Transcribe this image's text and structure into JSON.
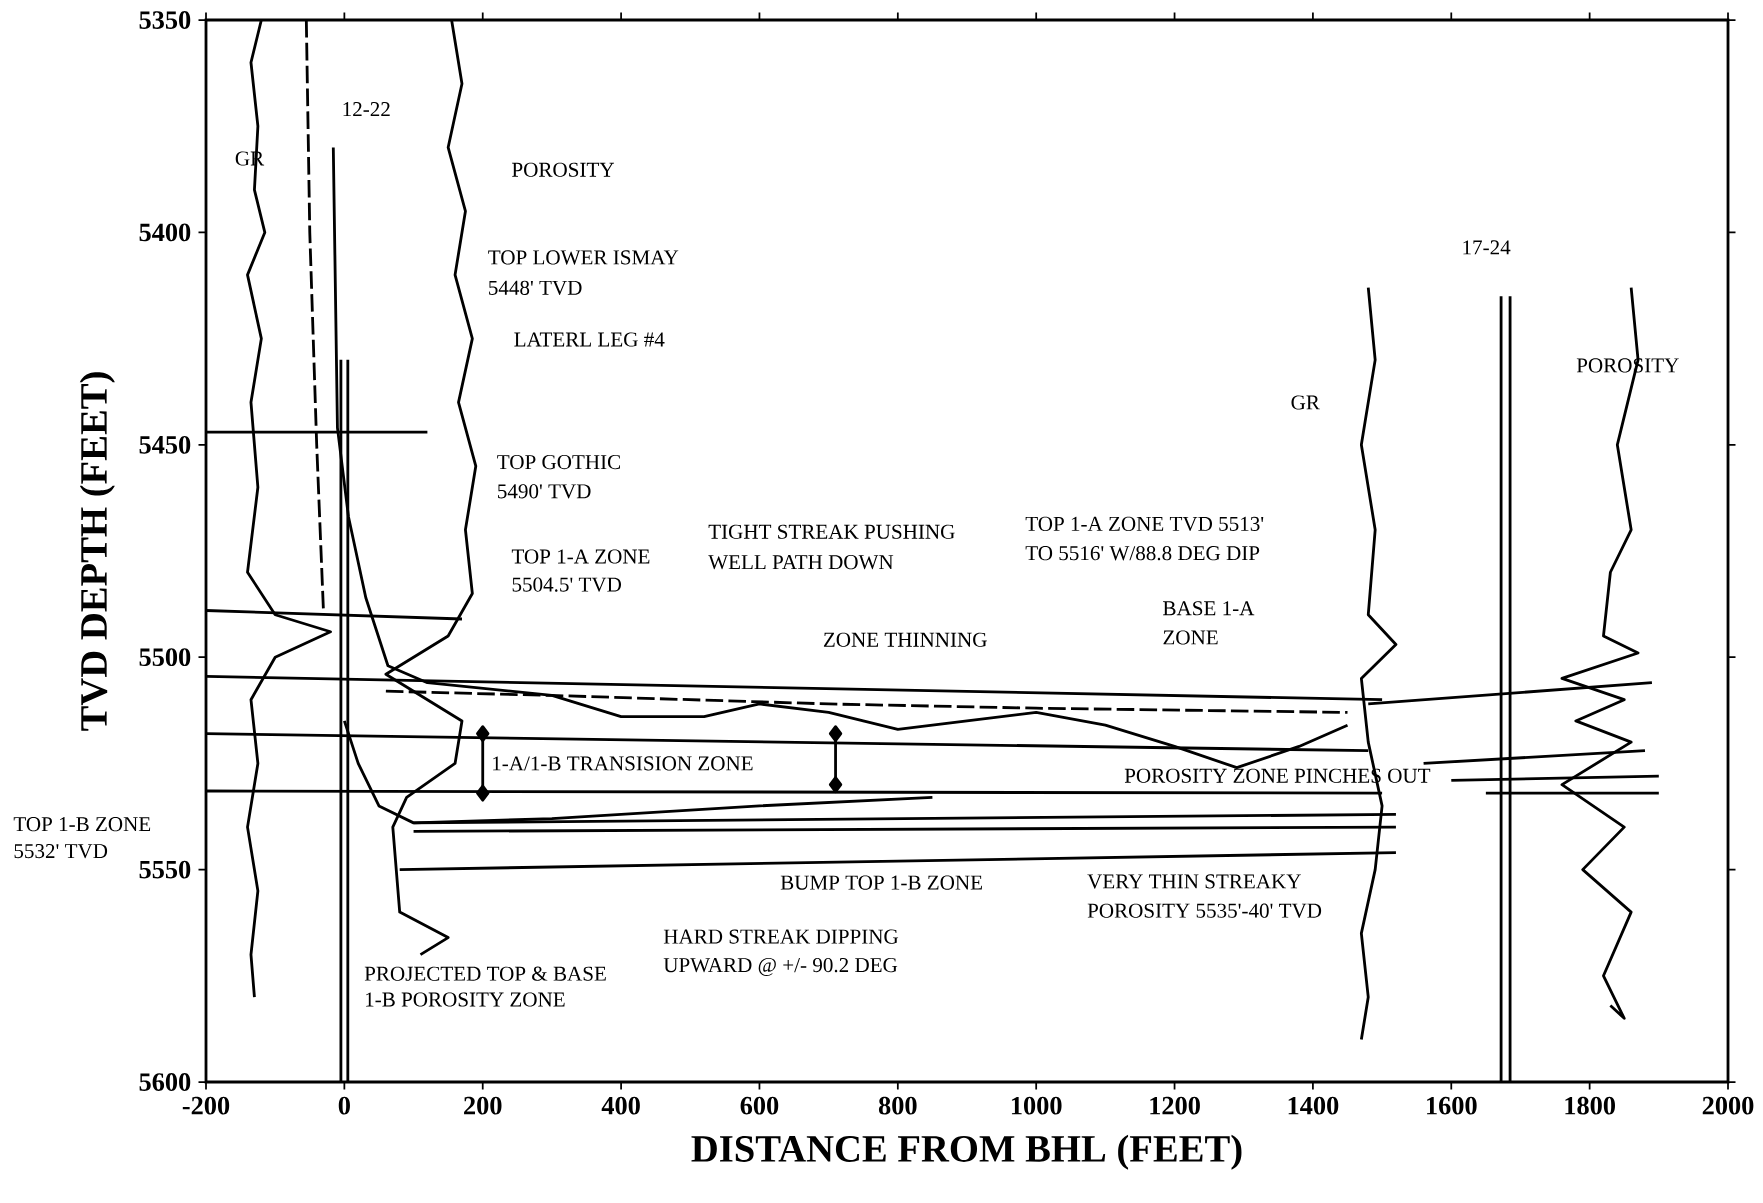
{
  "chart_data": {
    "type": "line",
    "xlabel": "DISTANCE FROM BHL (FEET)",
    "ylabel": "TVD DEPTH  (FEET)",
    "xlim": [
      -200,
      2000
    ],
    "ylim": [
      5600,
      5350
    ],
    "xticks": [
      -200,
      0,
      200,
      400,
      600,
      800,
      1000,
      1200,
      1400,
      1600,
      1800,
      2000
    ],
    "yticks": [
      5350,
      5400,
      5450,
      5500,
      5550,
      5600
    ],
    "grid": false,
    "series": [
      {
        "color": "#000000",
        "x": [
          -16,
          -10,
          6,
          31,
          63,
          120,
          300,
          400,
          520,
          600,
          700,
          800,
          900,
          1000,
          1100,
          1200,
          1290,
          1380,
          1450
        ],
        "values": [
          5380,
          5446,
          5467,
          5486,
          5502,
          5506,
          5509,
          5514,
          5514,
          5511,
          5513,
          5517,
          5515,
          5513,
          5516,
          5521,
          5526,
          5521,
          5516
        ]
      },
      {
        "color": "#000000",
        "x": [
          0,
          20,
          50,
          100,
          300,
          600,
          850
        ],
        "values": [
          5515,
          5525,
          5535,
          5539,
          5538,
          5535,
          5533
        ]
      },
      {
        "color": "#000000",
        "line_style": "dashed",
        "x": [
          -55,
          -50,
          -40,
          -30
        ],
        "values": [
          5350,
          5400,
          5450,
          5490
        ]
      },
      {
        "color": "#000000",
        "line_style": "dashed",
        "x": [
          60,
          300,
          700,
          1000,
          1450
        ],
        "values": [
          5508,
          5509,
          5511,
          5512,
          5513
        ]
      },
      {
        "color": "#000000",
        "x": [
          -200,
          120
        ],
        "values": [
          5447,
          5447
        ]
      },
      {
        "color": "#000000",
        "x": [
          -200,
          170
        ],
        "values": [
          5489,
          5491
        ]
      },
      {
        "color": "#000000",
        "x": [
          -200,
          1500
        ],
        "values": [
          5504.5,
          5510
        ]
      },
      {
        "color": "#000000",
        "x": [
          -200,
          1480
        ],
        "values": [
          5518,
          5522
        ]
      },
      {
        "color": "#000000",
        "x": [
          -200,
          1500
        ],
        "values": [
          5531.5,
          5532
        ]
      },
      {
        "color": "#000000",
        "x": [
          100,
          1520
        ],
        "values": [
          5539,
          5537
        ]
      },
      {
        "color": "#000000",
        "x": [
          100,
          1520
        ],
        "values": [
          5541,
          5540
        ]
      },
      {
        "color": "#000000",
        "x": [
          80,
          1520
        ],
        "values": [
          5550,
          5546
        ]
      },
      {
        "color": "#000000",
        "x": [
          1480,
          1890
        ],
        "values": [
          5511,
          5506
        ]
      },
      {
        "color": "#000000",
        "x": [
          1560,
          1880
        ],
        "values": [
          5525,
          5522
        ]
      },
      {
        "color": "#000000",
        "x": [
          1600,
          1900
        ],
        "values": [
          5529,
          5528
        ]
      },
      {
        "color": "#000000",
        "x": [
          1650,
          1900
        ],
        "values": [
          5532,
          5532
        ]
      },
      {
        "color": "#000000",
        "x": [
          -5,
          -5
        ],
        "values": [
          5430,
          5600
        ]
      },
      {
        "color": "#000000",
        "x": [
          5,
          5
        ],
        "values": [
          5430,
          5600
        ]
      },
      {
        "color": "#000000",
        "x": [
          1672,
          1672
        ],
        "values": [
          5415,
          5600
        ]
      },
      {
        "color": "#000000",
        "x": [
          1685,
          1685
        ],
        "values": [
          5415,
          5600
        ]
      },
      {
        "color": "#000000",
        "marker": "diamond",
        "x": [
          200,
          200
        ],
        "values": [
          5518,
          5532
        ]
      },
      {
        "color": "#000000",
        "marker": "diamond",
        "x": [
          710,
          710
        ],
        "values": [
          5518,
          5530
        ]
      },
      {
        "color": "#000000",
        "x": [
          -120,
          -135,
          -125,
          -130,
          -115,
          -140,
          -120,
          -135,
          -125,
          -140,
          -100,
          -60,
          -20,
          -100,
          -135,
          -125,
          -140,
          -125,
          -135,
          -130
        ],
        "values": [
          5350,
          5360,
          5375,
          5390,
          5400,
          5410,
          5425,
          5440,
          5460,
          5480,
          5490,
          5492,
          5494,
          5500,
          5510,
          5525,
          5540,
          5555,
          5570,
          5580
        ]
      },
      {
        "color": "#000000",
        "x": [
          155,
          170,
          150,
          175,
          160,
          185,
          165,
          190,
          175,
          185,
          150,
          60,
          170,
          160,
          90,
          70,
          80,
          150,
          110
        ],
        "values": [
          5350,
          5365,
          5380,
          5395,
          5410,
          5425,
          5440,
          5455,
          5470,
          5485,
          5495,
          5504,
          5515,
          5525,
          5533,
          5540,
          5560,
          5566,
          5570
        ]
      },
      {
        "color": "#000000",
        "x": [
          1480,
          1490,
          1470,
          1490,
          1480,
          1520,
          1470,
          1480,
          1500,
          1490,
          1470,
          1480,
          1470
        ],
        "values": [
          5413,
          5430,
          5450,
          5470,
          5490,
          5497,
          5505,
          5520,
          5535,
          5550,
          5565,
          5580,
          5590
        ]
      },
      {
        "color": "#000000",
        "x": [
          1860,
          1870,
          1840,
          1860,
          1830,
          1820,
          1870,
          1760,
          1850,
          1780,
          1860,
          1760,
          1850,
          1790,
          1860,
          1820,
          1850,
          1830
        ],
        "values": [
          5413,
          5430,
          5450,
          5470,
          5480,
          5495,
          5499,
          5505,
          5510,
          5515,
          5520,
          5530,
          5540,
          5550,
          5560,
          5575,
          5585,
          5582
        ]
      }
    ],
    "annotations": [
      "12-22",
      "GR",
      "POROSITY",
      "TOP LOWER ISMAY",
      "5448' TVD",
      "LATERL LEG #4",
      "TOP GOTHIC",
      "5490' TVD",
      "TOP 1-A ZONE",
      "5504.5' TVD",
      "TIGHT STREAK PUSHING",
      "WELL PATH DOWN",
      "TOP 1-A ZONE TVD 5513'",
      "TO 5516' W/88.8 DEG DIP",
      "BASE 1-A",
      "ZONE",
      "ZONE THINNING",
      "GR",
      "17-24",
      "POROSITY",
      "1-A/1-B TRANSISION ZONE",
      "POROSITY ZONE PINCHES OUT",
      "TOP 1-B ZONE",
      "5532' TVD",
      "BUMP TOP 1-B ZONE",
      "VERY THIN STREAKY",
      "POROSITY 5535'-40' TVD",
      "HARD STREAK DIPPING",
      "UPWARD @ +/- 90.2 DEG",
      "PROJECTED TOP & BASE",
      "1-B POROSITY ZONE"
    ]
  }
}
